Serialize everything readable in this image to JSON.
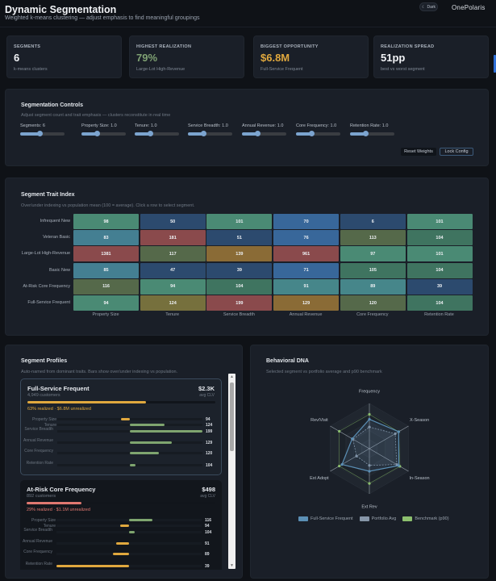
{
  "header": {
    "title": "Dynamic Segmentation",
    "subtitle": "Weighted k-means clustering — adjust emphasis to find meaningful groupings",
    "theme_toggle": "Dark",
    "theme_icon": "moon-icon",
    "logo": "OnePolaris"
  },
  "kpis": [
    {
      "label": "SEGMENTS",
      "value": "6",
      "sub": "k-means clusters",
      "color": "#f1f3f6"
    },
    {
      "label": "HIGHEST REALIZATION",
      "value": "79%",
      "sub": "Large-Lot High-Revenue",
      "color": "#7fa173"
    },
    {
      "label": "BIGGEST OPPORTUNITY",
      "value": "$6.8M",
      "sub": "Full-Service Frequent",
      "color": "#e0a83e"
    },
    {
      "label": "REALIZATION SPREAD",
      "value": "51pp",
      "sub": "best vs worst segment",
      "color": "#f1f3f6"
    }
  ],
  "controls": {
    "title": "Segmentation Controls",
    "subtitle": "Adjust segment count and trait emphasis — clusters reconstitute in real time",
    "sliders": [
      {
        "label": "Segments: 6",
        "fraction": 0.45
      },
      {
        "label": "Property Size: 1.0",
        "fraction": 0.36
      },
      {
        "label": "Tenure: 1.0",
        "fraction": 0.36
      },
      {
        "label": "Service Breadth: 1.0",
        "fraction": 0.36
      },
      {
        "label": "Annual Revenue: 1.0",
        "fraction": 0.36
      },
      {
        "label": "Core Frequency: 1.0",
        "fraction": 0.36
      },
      {
        "label": "Retention Rate: 1.0",
        "fraction": 0.36
      }
    ],
    "reset_label": "Reset Weights",
    "lock_label": "Lock Config"
  },
  "trait_index": {
    "title": "Segment Trait Index",
    "subtitle": "Over/under indexing vs population mean (100 = average). Click a row to select segment.",
    "columns": [
      "Property Size",
      "Tenure",
      "Service Breadth",
      "Annual Revenue",
      "Core Frequency",
      "Retention Rate"
    ],
    "rows": [
      {
        "name": "Infrequent New",
        "values": [
          98,
          50,
          101,
          70,
          6,
          101
        ]
      },
      {
        "name": "Veteran Basic",
        "values": [
          83,
          181,
          51,
          76,
          113,
          104
        ]
      },
      {
        "name": "Large-Lot High-Revenue",
        "values": [
          1381,
          117,
          139,
          961,
          97,
          101
        ]
      },
      {
        "name": "Basic New",
        "values": [
          85,
          47,
          39,
          71,
          105,
          104
        ]
      },
      {
        "name": "At-Risk Core Frequency",
        "values": [
          116,
          94,
          104,
          91,
          89,
          39
        ]
      },
      {
        "name": "Full-Service Frequent",
        "values": [
          94,
          124,
          199,
          129,
          120,
          104
        ]
      }
    ]
  },
  "profiles": {
    "title": "Segment Profiles",
    "subtitle": "Auto-named from dominant traits. Bars show over/under indexing vs population.",
    "cards": [
      {
        "name": "Full-Service Frequent",
        "customers": "4,949 customers",
        "clv": "$2.3K",
        "clv_label": "avg CLV",
        "realized_pct": 63,
        "realized_text": "63% realized · $6.8M unrealized",
        "color": "#e0a83e",
        "traits": [
          {
            "label": "Property Size",
            "value": 94
          },
          {
            "label": "Tenure",
            "value": 124
          },
          {
            "label": "Service Breadth",
            "value": 199
          },
          {
            "label": "Annual Revenue",
            "value": 129
          },
          {
            "label": "Core Frequency",
            "value": 120
          },
          {
            "label": "Retention Rate",
            "value": 104
          }
        ]
      },
      {
        "name": "At-Risk Core Frequency",
        "customers": "892 customers",
        "clv": "$498",
        "clv_label": "avg CLV",
        "realized_pct": 29,
        "realized_text": "29% realized · $1.1M unrealized",
        "color": "#e07870",
        "traits": [
          {
            "label": "Property Size",
            "value": 116
          },
          {
            "label": "Tenure",
            "value": 94
          },
          {
            "label": "Service Breadth",
            "value": 104
          },
          {
            "label": "Annual Revenue",
            "value": 91
          },
          {
            "label": "Core Frequency",
            "value": 89
          },
          {
            "label": "Retention Rate",
            "value": 39
          }
        ]
      }
    ]
  },
  "dna": {
    "title": "Behavioral DNA",
    "subtitle": "Selected segment vs portfolio average and p90 benchmark",
    "chart_data": {
      "type": "radar",
      "axes": [
        "Frequency",
        "X-Season",
        "In-Season",
        "Ext Rev",
        "Ext Adopt",
        "Rev/Visit"
      ],
      "range": [
        0,
        100
      ],
      "series": [
        {
          "name": "Full-Service Frequent",
          "values": [
            65,
            75,
            75,
            50,
            70,
            44
          ],
          "color": "#5b8fb5"
        },
        {
          "name": "Portfolio Avg",
          "values": [
            48,
            66,
            70,
            37,
            33,
            42
          ],
          "color": "#8796a8"
        },
        {
          "name": "Benchmark (p90)",
          "values": [
            76,
            75,
            78,
            77,
            77,
            77
          ],
          "color": "#8cbf6e"
        }
      ]
    }
  }
}
